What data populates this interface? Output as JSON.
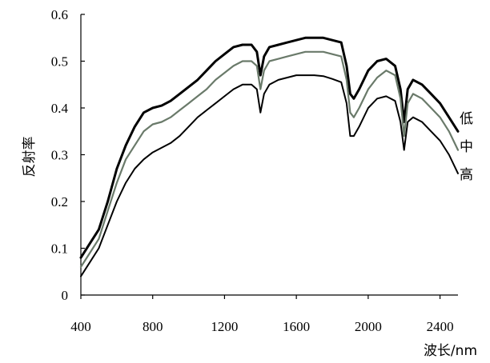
{
  "chart_data": {
    "type": "line",
    "xlabel": "波长/nm",
    "ylabel": "反射率",
    "xlim": [
      400,
      2500
    ],
    "ylim": [
      0,
      0.6
    ],
    "xticks": [
      "400",
      "800",
      "1200",
      "1600",
      "2000",
      "2400"
    ],
    "yticks": [
      "0",
      "0.1",
      "0.2",
      "0.3",
      "0.4",
      "0.5",
      "0.6"
    ],
    "grid": false,
    "legend": "inline-right",
    "series": [
      {
        "name": "低",
        "color": "#000000",
        "x": [
          400,
          450,
          500,
          550,
          600,
          650,
          700,
          750,
          800,
          850,
          900,
          950,
          1000,
          1050,
          1100,
          1150,
          1200,
          1250,
          1300,
          1350,
          1380,
          1400,
          1420,
          1450,
          1500,
          1550,
          1600,
          1650,
          1700,
          1750,
          1800,
          1850,
          1880,
          1900,
          1920,
          1950,
          2000,
          2050,
          2100,
          2150,
          2180,
          2200,
          2220,
          2250,
          2300,
          2350,
          2400,
          2450,
          2500
        ],
        "y": [
          0.08,
          0.11,
          0.14,
          0.2,
          0.27,
          0.32,
          0.36,
          0.39,
          0.4,
          0.405,
          0.415,
          0.43,
          0.445,
          0.46,
          0.48,
          0.5,
          0.515,
          0.53,
          0.535,
          0.535,
          0.52,
          0.47,
          0.51,
          0.53,
          0.535,
          0.54,
          0.545,
          0.55,
          0.55,
          0.55,
          0.545,
          0.54,
          0.49,
          0.43,
          0.42,
          0.44,
          0.48,
          0.5,
          0.505,
          0.49,
          0.44,
          0.37,
          0.44,
          0.46,
          0.45,
          0.43,
          0.41,
          0.38,
          0.35
        ]
      },
      {
        "name": "中",
        "color": "#6a7a6a",
        "x": [
          400,
          450,
          500,
          550,
          600,
          650,
          700,
          750,
          800,
          850,
          900,
          950,
          1000,
          1050,
          1100,
          1150,
          1200,
          1250,
          1300,
          1350,
          1380,
          1400,
          1420,
          1450,
          1500,
          1550,
          1600,
          1650,
          1700,
          1750,
          1800,
          1850,
          1880,
          1900,
          1920,
          1950,
          2000,
          2050,
          2100,
          2150,
          2180,
          2200,
          2220,
          2250,
          2300,
          2350,
          2400,
          2450,
          2500
        ],
        "y": [
          0.06,
          0.09,
          0.12,
          0.18,
          0.24,
          0.29,
          0.32,
          0.35,
          0.365,
          0.37,
          0.38,
          0.395,
          0.41,
          0.425,
          0.44,
          0.46,
          0.475,
          0.49,
          0.5,
          0.5,
          0.49,
          0.44,
          0.48,
          0.5,
          0.505,
          0.51,
          0.515,
          0.52,
          0.52,
          0.52,
          0.515,
          0.51,
          0.46,
          0.39,
          0.38,
          0.4,
          0.44,
          0.465,
          0.48,
          0.47,
          0.42,
          0.34,
          0.41,
          0.43,
          0.42,
          0.4,
          0.38,
          0.35,
          0.31
        ]
      },
      {
        "name": "高",
        "color": "#000000",
        "x": [
          400,
          450,
          500,
          550,
          600,
          650,
          700,
          750,
          800,
          850,
          900,
          950,
          1000,
          1050,
          1100,
          1150,
          1200,
          1250,
          1300,
          1350,
          1380,
          1400,
          1420,
          1450,
          1500,
          1550,
          1600,
          1650,
          1700,
          1750,
          1800,
          1850,
          1880,
          1900,
          1920,
          1950,
          2000,
          2050,
          2100,
          2150,
          2180,
          2200,
          2220,
          2250,
          2300,
          2350,
          2400,
          2450,
          2500
        ],
        "y": [
          0.04,
          0.07,
          0.1,
          0.15,
          0.2,
          0.24,
          0.27,
          0.29,
          0.305,
          0.315,
          0.325,
          0.34,
          0.36,
          0.38,
          0.395,
          0.41,
          0.425,
          0.44,
          0.45,
          0.45,
          0.44,
          0.39,
          0.43,
          0.45,
          0.46,
          0.465,
          0.47,
          0.47,
          0.47,
          0.468,
          0.462,
          0.455,
          0.41,
          0.34,
          0.34,
          0.36,
          0.4,
          0.42,
          0.425,
          0.415,
          0.37,
          0.31,
          0.37,
          0.38,
          0.37,
          0.35,
          0.33,
          0.3,
          0.26
        ]
      }
    ]
  }
}
